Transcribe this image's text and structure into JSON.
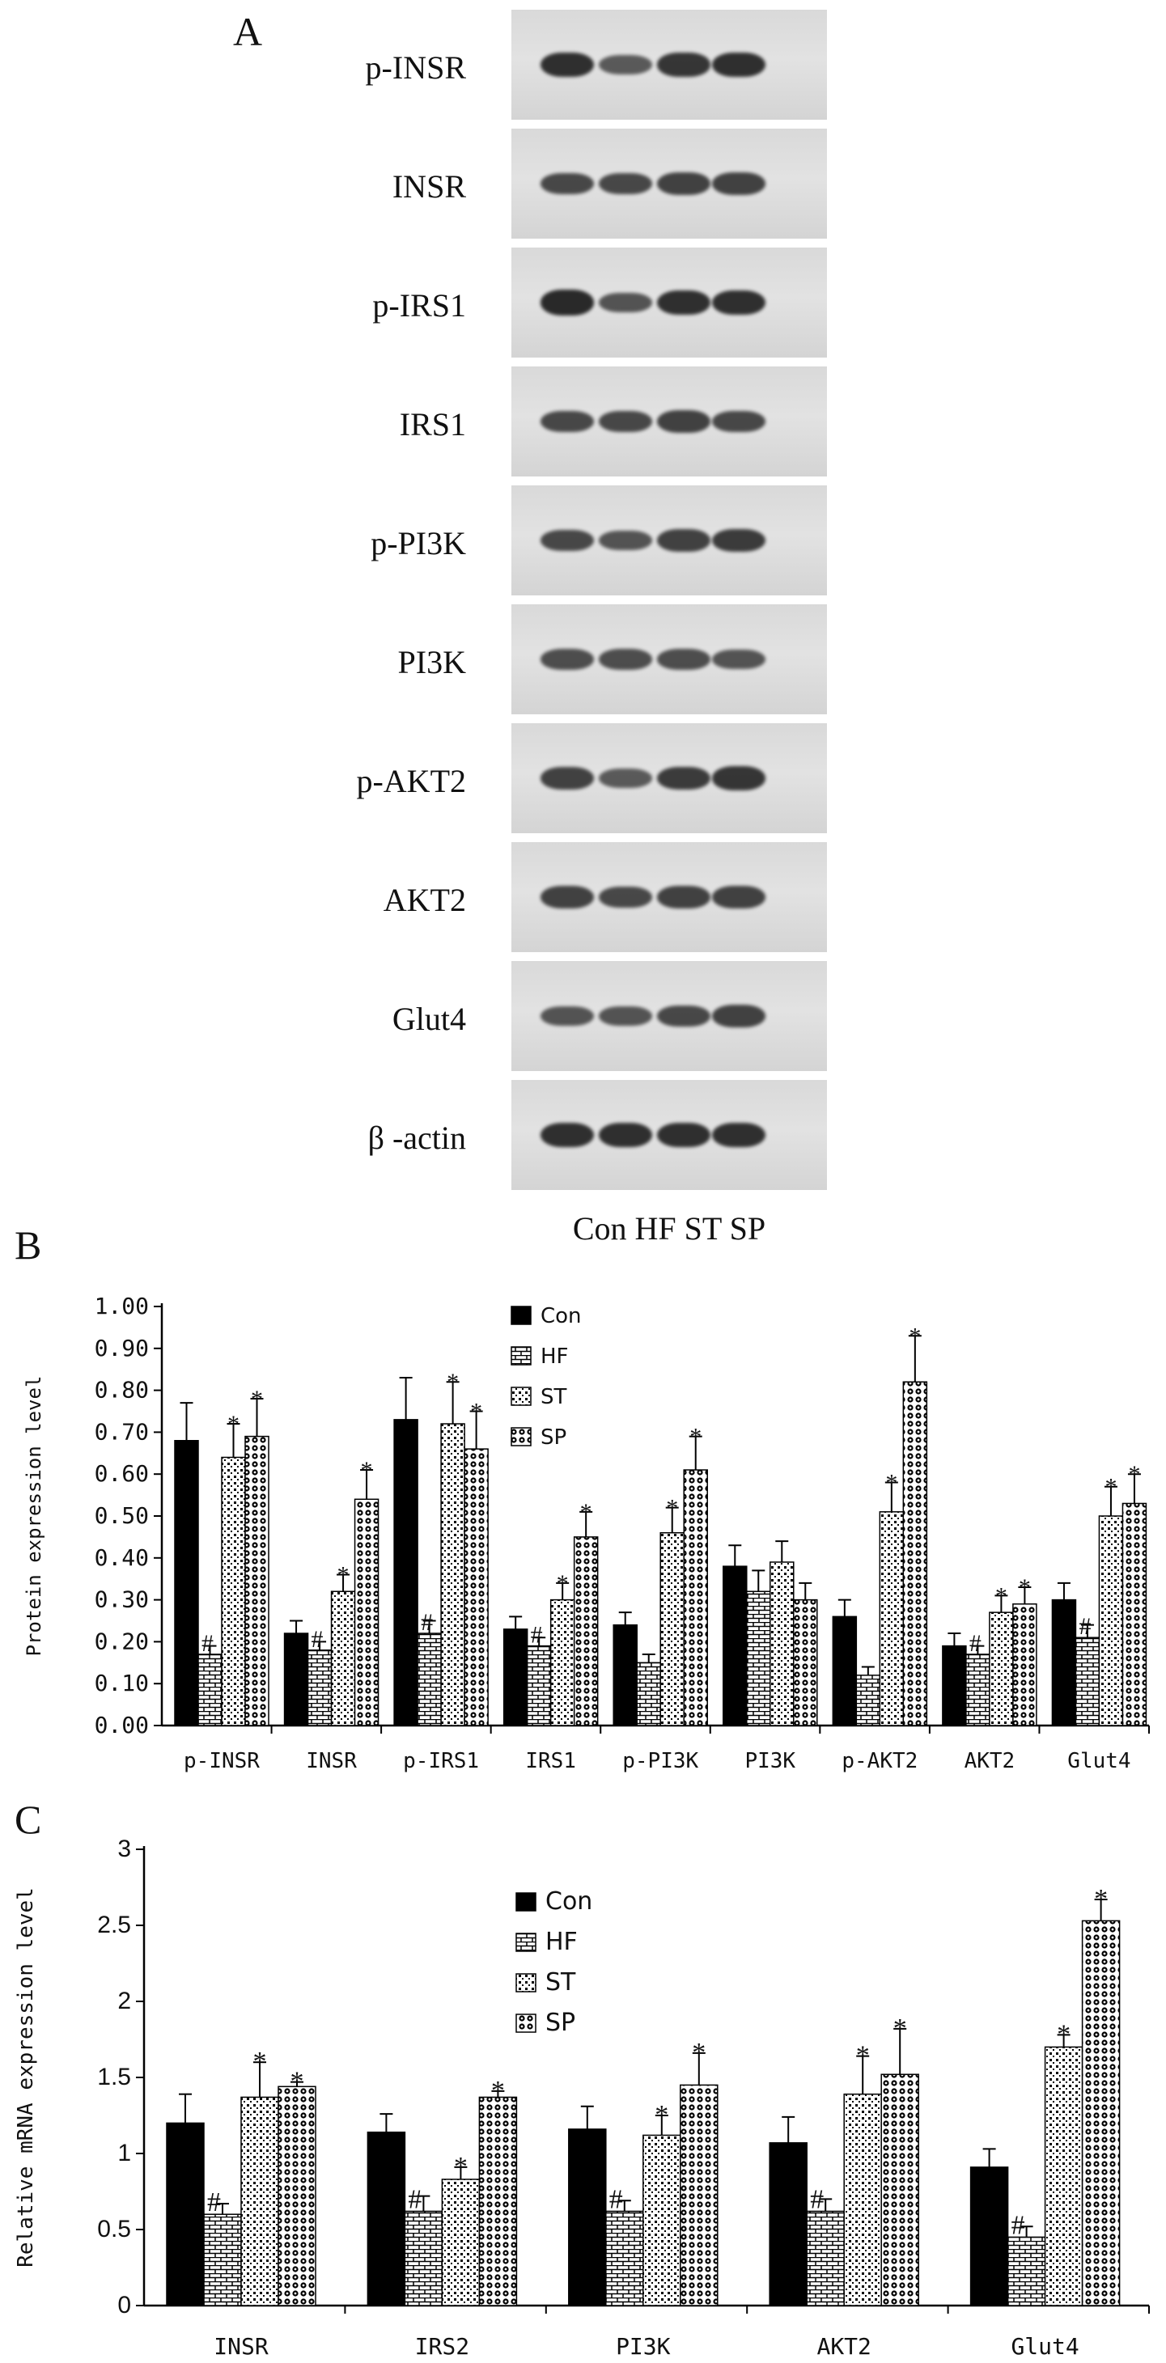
{
  "panel_a": {
    "letter": "A",
    "lanes_caption": "Con HF ST SP",
    "blots": [
      {
        "label": "p-INSR",
        "bands": [
          0.9,
          0.55,
          0.85,
          0.9
        ]
      },
      {
        "label": "INSR",
        "bands": [
          0.7,
          0.7,
          0.75,
          0.75
        ]
      },
      {
        "label": "p-IRS1",
        "bands": [
          0.95,
          0.6,
          0.9,
          0.9
        ]
      },
      {
        "label": "IRS1",
        "bands": [
          0.7,
          0.7,
          0.75,
          0.7
        ]
      },
      {
        "label": "p-PI3K",
        "bands": [
          0.7,
          0.6,
          0.75,
          0.8
        ]
      },
      {
        "label": "PI3K",
        "bands": [
          0.65,
          0.65,
          0.65,
          0.6
        ]
      },
      {
        "label": "p-AKT2",
        "bands": [
          0.75,
          0.55,
          0.8,
          0.85
        ]
      },
      {
        "label": "AKT2",
        "bands": [
          0.75,
          0.7,
          0.75,
          0.75
        ]
      },
      {
        "label": "Glut4",
        "bands": [
          0.6,
          0.6,
          0.7,
          0.75
        ]
      },
      {
        "label": "β -actin",
        "bands": [
          0.9,
          0.9,
          0.9,
          0.9
        ]
      }
    ],
    "band_color": "#1a1a1a"
  },
  "chart_data": [
    {
      "panel": "B",
      "type": "bar",
      "ylabel": "Protein expression level",
      "xlabel": "",
      "ylim": [
        0,
        1.0
      ],
      "yticks": [
        "0.00",
        "0.10",
        "0.20",
        "0.30",
        "0.40",
        "0.50",
        "0.60",
        "0.70",
        "0.80",
        "0.90",
        "1.00"
      ],
      "yticks_values": [
        0,
        0.1,
        0.2,
        0.3,
        0.4,
        0.5,
        0.6,
        0.7,
        0.8,
        0.9,
        1.0
      ],
      "categories": [
        "p-INSR",
        "INSR",
        "p-IRS1",
        "IRS1",
        "p-PI3K",
        "PI3K",
        "p-AKT2",
        "AKT2",
        "Glut4"
      ],
      "series": [
        {
          "name": "Con",
          "pattern": "solid",
          "values": [
            0.68,
            0.22,
            0.73,
            0.23,
            0.24,
            0.38,
            0.26,
            0.19,
            0.3
          ],
          "errors": [
            0.09,
            0.03,
            0.1,
            0.03,
            0.03,
            0.05,
            0.04,
            0.03,
            0.04
          ],
          "marks": [
            "",
            "",
            "",
            "",
            "",
            "",
            "",
            "",
            ""
          ]
        },
        {
          "name": "HF",
          "pattern": "brick",
          "values": [
            0.17,
            0.18,
            0.22,
            0.19,
            0.15,
            0.32,
            0.12,
            0.17,
            0.21
          ],
          "errors": [
            0.02,
            0.02,
            0.03,
            0.02,
            0.02,
            0.05,
            0.02,
            0.02,
            0.03
          ],
          "marks": [
            "#",
            "#",
            "#",
            "#",
            "",
            "",
            "",
            "#",
            "#"
          ]
        },
        {
          "name": "ST",
          "pattern": "dots",
          "values": [
            0.64,
            0.32,
            0.72,
            0.3,
            0.46,
            0.39,
            0.51,
            0.27,
            0.5
          ],
          "errors": [
            0.08,
            0.04,
            0.1,
            0.04,
            0.06,
            0.05,
            0.07,
            0.04,
            0.07
          ],
          "marks": [
            "*",
            "*",
            "*",
            "*",
            "*",
            "",
            "*",
            "*",
            "*"
          ]
        },
        {
          "name": "SP",
          "pattern": "circles",
          "values": [
            0.69,
            0.54,
            0.66,
            0.45,
            0.61,
            0.3,
            0.82,
            0.29,
            0.53
          ],
          "errors": [
            0.09,
            0.07,
            0.09,
            0.06,
            0.08,
            0.04,
            0.11,
            0.04,
            0.07
          ],
          "marks": [
            "*",
            "*",
            "*",
            "*",
            "*",
            "",
            "*",
            "*",
            "*"
          ]
        }
      ],
      "legend_position": "top-center",
      "grid": false
    },
    {
      "panel": "C",
      "type": "bar",
      "ylabel": "Relative mRNA expression level",
      "xlabel": "",
      "ylim": [
        0,
        3
      ],
      "yticks": [
        "0",
        "0.5",
        "1",
        "1.5",
        "2",
        "2.5",
        "3"
      ],
      "yticks_values": [
        0,
        0.5,
        1,
        1.5,
        2,
        2.5,
        3
      ],
      "categories": [
        "INSR",
        "IRS2",
        "PI3K",
        "AKT2",
        "Glut4"
      ],
      "series": [
        {
          "name": "Con",
          "pattern": "solid",
          "values": [
            1.2,
            1.14,
            1.16,
            1.07,
            0.91
          ],
          "errors": [
            0.19,
            0.12,
            0.15,
            0.17,
            0.12
          ],
          "marks": [
            "",
            "",
            "",
            "",
            ""
          ]
        },
        {
          "name": "HF",
          "pattern": "brick",
          "values": [
            0.6,
            0.62,
            0.62,
            0.62,
            0.45
          ],
          "errors": [
            0.07,
            0.1,
            0.07,
            0.08,
            0.07
          ],
          "marks": [
            "#",
            "#",
            "#",
            "#",
            "#"
          ]
        },
        {
          "name": "ST",
          "pattern": "dots",
          "values": [
            1.37,
            0.83,
            1.12,
            1.39,
            1.7
          ],
          "errors": [
            0.23,
            0.08,
            0.13,
            0.25,
            0.08
          ],
          "marks": [
            "*",
            "*",
            "*",
            "*",
            "*"
          ]
        },
        {
          "name": "SP",
          "pattern": "circles",
          "values": [
            1.44,
            1.37,
            1.45,
            1.52,
            2.53
          ],
          "errors": [
            0.03,
            0.04,
            0.21,
            0.3,
            0.14
          ],
          "marks": [
            "*",
            "*",
            "*",
            "*",
            "*"
          ]
        }
      ],
      "legend_position": "top-center",
      "grid": false
    }
  ],
  "panel_b_letter": "B",
  "panel_c_letter": "C"
}
